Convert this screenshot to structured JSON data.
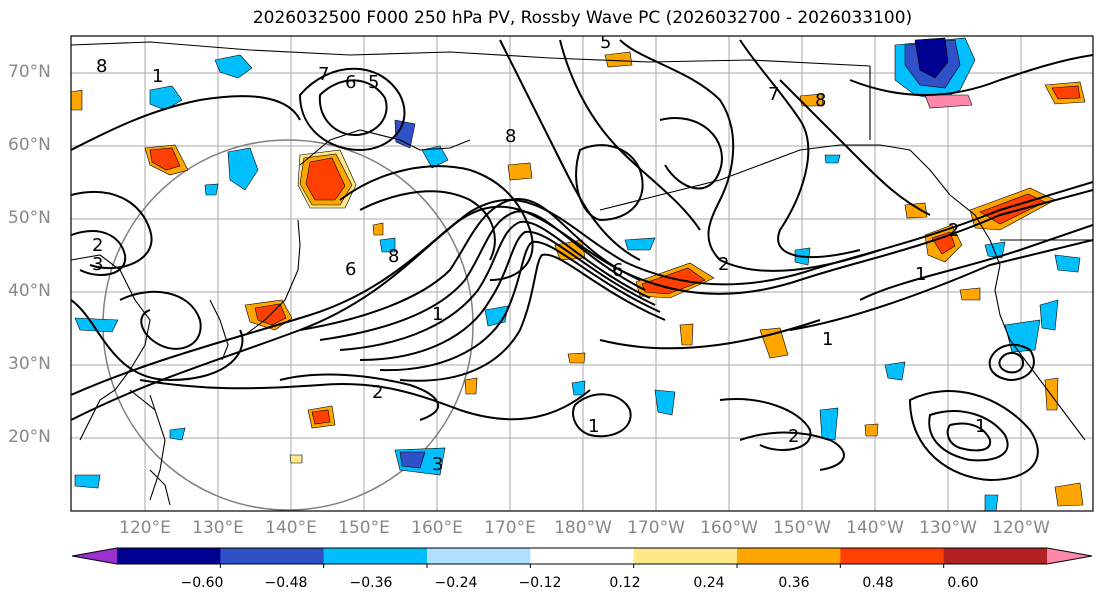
{
  "title": "2026032500 F000 250 hPa PV, Rossby Wave PC (2026032700 - 2026033100)",
  "lat_labels": [
    "70°N",
    "60°N",
    "50°N",
    "40°N",
    "30°N",
    "20°N"
  ],
  "lon_labels": [
    "120°E",
    "130°E",
    "140°E",
    "150°E",
    "160°E",
    "170°E",
    "180°W",
    "170°W",
    "160°W",
    "150°W",
    "140°W",
    "130°W",
    "120°W"
  ],
  "colorbar": {
    "colors": [
      "#9b30d0",
      "#000090",
      "#3050c8",
      "#00bfff",
      "#b0e0ff",
      "#ffffff",
      "#ffe88a",
      "#ffa500",
      "#ff4000",
      "#b22222",
      "#ff88aa"
    ],
    "tick_labels": [
      "−0.60",
      "−0.48",
      "−0.36",
      "−0.24",
      "−0.12",
      "0.12",
      "0.24",
      "0.36",
      "0.48",
      "0.60"
    ]
  },
  "contour_labels": [
    "8",
    "1",
    "6",
    "5",
    "7",
    "2",
    "3",
    "8",
    "6",
    "1",
    "2",
    "8",
    "1",
    "6",
    "3",
    "1",
    "2",
    "1",
    "2",
    "1",
    "2",
    "7",
    "5",
    "8"
  ]
}
